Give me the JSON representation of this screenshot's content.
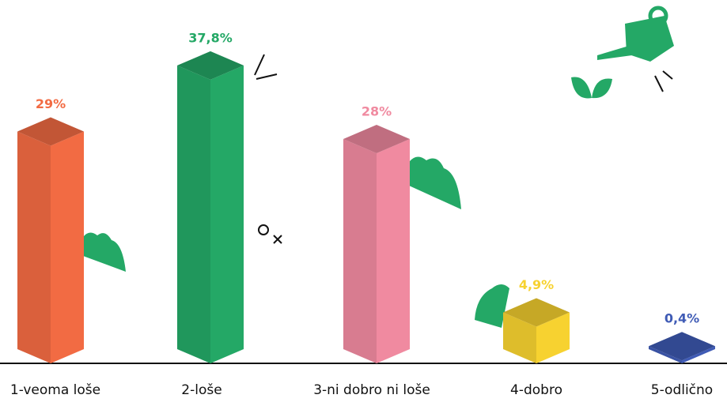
{
  "chart_data": {
    "type": "bar",
    "categories": [
      "1-veoma loše",
      "2-loše",
      "3-ni dobro ni loše",
      "4-dobro",
      "5-odlično"
    ],
    "values": [
      29,
      37.8,
      28,
      4.9,
      0.4
    ],
    "value_labels": [
      "29%",
      "37,8%",
      "28%",
      "4,9%",
      "0,4%"
    ],
    "colors": [
      "#f26b43",
      "#24a866",
      "#f08aa0",
      "#f7d230",
      "#3f5bb5"
    ]
  }
}
